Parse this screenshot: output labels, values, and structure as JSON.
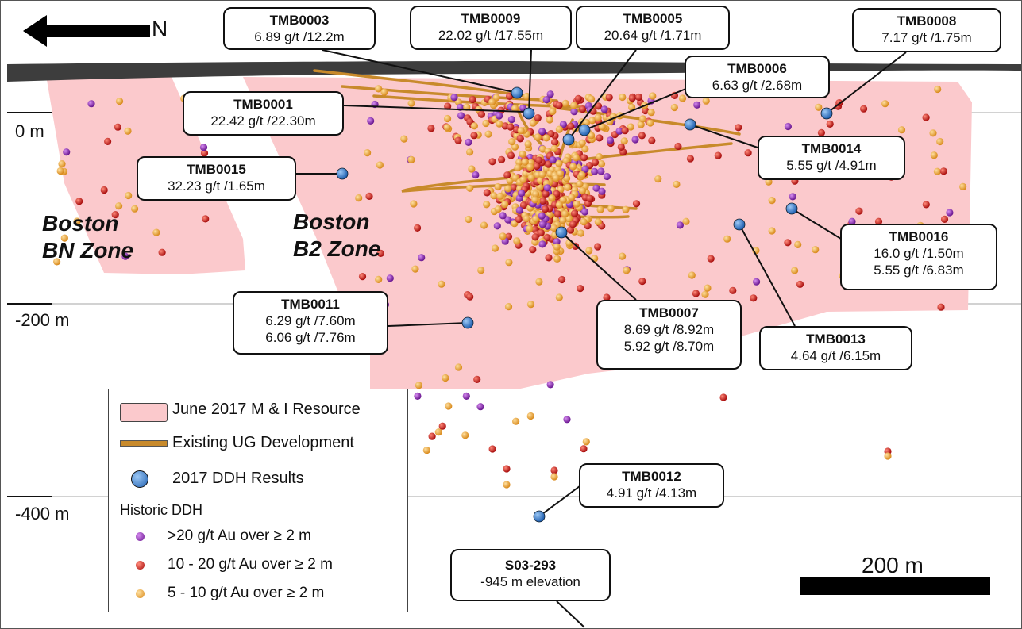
{
  "north_arrow": {
    "label": "N",
    "icon": "left-arrow-icon"
  },
  "elevations": [
    "0 m",
    "-200 m",
    "-400 m"
  ],
  "zones": [
    {
      "line1": "Boston",
      "line2": "BN Zone"
    },
    {
      "line1": "Boston",
      "line2": "B2 Zone"
    }
  ],
  "callouts": [
    {
      "id": "TMB0003",
      "lines": [
        "6.89 g/t /12.2m"
      ]
    },
    {
      "id": "TMB0009",
      "lines": [
        "22.02 g/t /17.55m"
      ]
    },
    {
      "id": "TMB0005",
      "lines": [
        "20.64 g/t /1.71m"
      ]
    },
    {
      "id": "TMB0008",
      "lines": [
        "7.17 g/t /1.75m"
      ]
    },
    {
      "id": "TMB0006",
      "lines": [
        "6.63 g/t /2.68m"
      ]
    },
    {
      "id": "TMB0001",
      "lines": [
        "22.42 g/t /22.30m"
      ]
    },
    {
      "id": "TMB0014",
      "lines": [
        "5.55 g/t /4.91m"
      ]
    },
    {
      "id": "TMB0015",
      "lines": [
        "32.23 g/t /1.65m"
      ]
    },
    {
      "id": "TMB0016",
      "lines": [
        "16.0 g/t /1.50m",
        "5.55 g/t /6.83m"
      ]
    },
    {
      "id": "TMB0011",
      "lines": [
        "6.29 g/t /7.60m",
        "6.06 g/t /7.76m"
      ]
    },
    {
      "id": "TMB0007",
      "lines": [
        "8.69 g/t /8.92m",
        "5.92 g/t /8.70m"
      ]
    },
    {
      "id": "TMB0013",
      "lines": [
        "4.64 g/t /6.15m"
      ]
    },
    {
      "id": "TMB0012",
      "lines": [
        "4.91 g/t /4.13m"
      ]
    },
    {
      "id": "S03-293",
      "lines": [
        "-945 m elevation"
      ]
    }
  ],
  "legend": {
    "resource": "June 2017 M & I Resource",
    "ug": "Existing UG Development",
    "ddh2017": "2017 DDH Results",
    "historic_title": "Historic DDH",
    "historic": [
      {
        "label": ">20 g/t Au over ≥ 2 m",
        "color": "#8e2bb0"
      },
      {
        "label": "10 - 20 g/t Au over ≥ 2 m",
        "color": "#d91a1a"
      },
      {
        "label": "5 - 10 g/t Au over ≥ 2 m",
        "color": "#f0a640"
      }
    ]
  },
  "colors": {
    "resource": "#fbc9cc",
    "ug": "#c88a2b",
    "ddh2017": "#3f86d8",
    "surface": "#3d3d3d"
  },
  "scale": {
    "label": "200 m"
  }
}
